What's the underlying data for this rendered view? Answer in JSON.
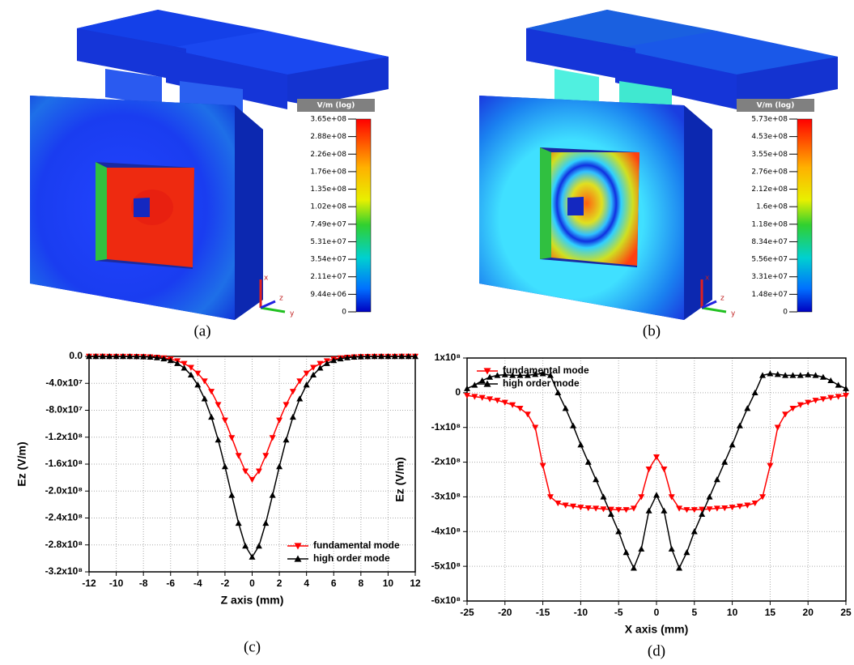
{
  "renders": [
    {
      "caption": "(a)",
      "colorbar_title": "V/m (log)",
      "axes_labels": [
        "x",
        "z",
        "y"
      ],
      "colorbar_labels": [
        "3.65e+08",
        "2.88e+08",
        "2.26e+08",
        "1.76e+08",
        "1.35e+08",
        "1.02e+08",
        "7.49e+07",
        "5.31e+07",
        "3.54e+07",
        "2.11e+07",
        "9.44e+06",
        "0"
      ]
    },
    {
      "caption": "(b)",
      "colorbar_title": "V/m (log)",
      "axes_labels": [
        "x",
        "z",
        "y"
      ],
      "colorbar_labels": [
        "5.73e+08",
        "4.53e+08",
        "3.55e+08",
        "2.76e+08",
        "2.12e+08",
        "1.6e+08",
        "1.18e+08",
        "8.34e+07",
        "5.56e+07",
        "3.31e+07",
        "1.48e+07",
        "0"
      ]
    }
  ],
  "chart_data": [
    {
      "type": "line",
      "caption": "(c)",
      "x_label": "Z axis (mm)",
      "y_label": "Ez (V/m)",
      "grid": true,
      "legend": "lower right",
      "xlim": [
        -12,
        12
      ],
      "xticks": [
        -12,
        -10,
        -8,
        -6,
        -4,
        -2,
        0,
        2,
        4,
        6,
        8,
        10,
        12
      ],
      "ylim": [
        -320000000.0,
        0
      ],
      "yticks": [
        {
          "value": 0,
          "label": "0.0"
        },
        {
          "value": -40000000.0,
          "label": "-4.0x10⁷"
        },
        {
          "value": -80000000.0,
          "label": "-8.0x10⁷"
        },
        {
          "value": -120000000.0,
          "label": "-1.2x10⁸"
        },
        {
          "value": -160000000.0,
          "label": "-1.6x10⁸"
        },
        {
          "value": -200000000.0,
          "label": "-2.0x10⁸"
        },
        {
          "value": -240000000.0,
          "label": "-2.4x10⁸"
        },
        {
          "value": -280000000.0,
          "label": "-2.8x10⁸"
        },
        {
          "value": -320000000.0,
          "label": "-3.2x10⁸"
        }
      ],
      "x": [
        -12,
        -11.5,
        -11,
        -10.5,
        -10,
        -9.5,
        -9,
        -8.5,
        -8,
        -7.5,
        -7,
        -6.5,
        -6,
        -5.5,
        -5,
        -4.5,
        -4,
        -3.5,
        -3,
        -2.5,
        -2,
        -1.5,
        -1,
        -0.5,
        0,
        0.5,
        1,
        1.5,
        2,
        2.5,
        3,
        3.5,
        4,
        4.5,
        5,
        5.5,
        6,
        6.5,
        7,
        7.5,
        8,
        8.5,
        9,
        9.5,
        10,
        10.5,
        11,
        11.5,
        12
      ],
      "series": [
        {
          "name": "fundamental mode",
          "color": "#ff0000",
          "marker": "triangle-down",
          "values": [
            -2000.0,
            -4000.0,
            -9000.0,
            -18000.0,
            -36000.0,
            -70000.0,
            -130000.0,
            -240000.0,
            -440000.0,
            -780000.0,
            -1390000.0,
            -2400000.0,
            -4000000.0,
            -6660000.0,
            -10600000.0,
            -16500000.0,
            -25100000.0,
            -36600000.0,
            -52100000.0,
            -71600000.0,
            -94800000.0,
            -120800000.0,
            -147300000.0,
            -170400000.0,
            -183000000.0,
            -170400000.0,
            -147300000.0,
            -120800000.0,
            -94800000.0,
            -71600000.0,
            -52100000.0,
            -36600000.0,
            -25100000.0,
            -16500000.0,
            -10600000.0,
            -6660000.0,
            -4000000.0,
            -2400000.0,
            -1390000.0,
            -780000.0,
            -440000.0,
            -240000.0,
            -130000.0,
            -70000.0,
            -36000.0,
            -18000.0,
            -9000.0,
            -4000.0,
            -2000.0
          ]
        },
        {
          "name": "high order mode",
          "color": "#000000",
          "marker": "triangle-up",
          "values": [
            -1000.0,
            -3000.0,
            -6000.0,
            -14000.0,
            -30000.0,
            -60000.0,
            -130000.0,
            -260000.0,
            -520000.0,
            -1000000.0,
            -1900000.0,
            -3500000.0,
            -6100000.0,
            -10400000.0,
            -17200000.0,
            -27500000.0,
            -42300000.0,
            -62900000.0,
            -90100000.0,
            -124000000.0,
            -163600000.0,
            -206200000.0,
            -247700000.0,
            -281500000.0,
            -298000000.0,
            -281500000.0,
            -247700000.0,
            -206200000.0,
            -163600000.0,
            -124000000.0,
            -90100000.0,
            -62900000.0,
            -42300000.0,
            -27500000.0,
            -17200000.0,
            -10400000.0,
            -6100000.0,
            -3500000.0,
            -1900000.0,
            -1000000.0,
            -520000.0,
            -260000.0,
            -130000.0,
            -60000.0,
            -30000.0,
            -14000.0,
            -6000.0,
            -3000.0,
            -1000.0
          ]
        }
      ]
    },
    {
      "type": "line",
      "caption": "(d)",
      "x_label": "X axis (mm)",
      "y_label": "Ez (V/m)",
      "grid": true,
      "legend": "upper left",
      "xlim": [
        -25,
        25
      ],
      "xticks": [
        -25,
        -20,
        -15,
        -10,
        -5,
        0,
        5,
        10,
        15,
        20,
        25
      ],
      "ylim": [
        -600000000.0,
        100000000.0
      ],
      "yticks": [
        {
          "value": 100000000.0,
          "label": "1x10⁸"
        },
        0,
        {
          "value": -100000000.0,
          "label": "-1x10⁸"
        },
        {
          "value": -200000000.0,
          "label": "-2x10⁸"
        },
        {
          "value": -300000000.0,
          "label": "-3x10⁸"
        },
        {
          "value": -400000000.0,
          "label": "-4x10⁸"
        },
        {
          "value": -500000000.0,
          "label": "-5x10⁸"
        },
        {
          "value": -600000000.0,
          "label": "-6x10⁸"
        }
      ],
      "x": [
        -25,
        -24,
        -23,
        -22,
        -21,
        -20,
        -19,
        -18,
        -17,
        -16,
        -15,
        -14,
        -13,
        -12,
        -11,
        -10,
        -9,
        -8,
        -7,
        -6,
        -5,
        -4,
        -3,
        -2,
        -1,
        0,
        1,
        2,
        3,
        4,
        5,
        6,
        7,
        8,
        9,
        10,
        11,
        12,
        13,
        14,
        15,
        16,
        17,
        18,
        19,
        20,
        21,
        22,
        23,
        24,
        25
      ],
      "series": [
        {
          "name": "fundamental mode",
          "color": "#ff0000",
          "marker": "triangle-down",
          "values": [
            -8000000.0,
            -11000000.0,
            -14000000.0,
            -18000000.0,
            -22000000.0,
            -28000000.0,
            -35000000.0,
            -45000000.0,
            -62000000.0,
            -100000000.0,
            -210000000.0,
            -300000000.0,
            -318000000.0,
            -324000000.0,
            -327000000.0,
            -330000000.0,
            -332000000.0,
            -333000000.0,
            -335000000.0,
            -336000000.0,
            -337000000.0,
            -337000000.0,
            -333000000.0,
            -300000000.0,
            -220000000.0,
            -185000000.0,
            -220000000.0,
            -300000000.0,
            -333000000.0,
            -337000000.0,
            -337000000.0,
            -336000000.0,
            -335000000.0,
            -333000000.0,
            -332000000.0,
            -330000000.0,
            -327000000.0,
            -324000000.0,
            -318000000.0,
            -300000000.0,
            -210000000.0,
            -100000000.0,
            -62000000.0,
            -45000000.0,
            -35000000.0,
            -28000000.0,
            -22000000.0,
            -18000000.0,
            -14000000.0,
            -11000000.0,
            -8000000.0
          ]
        },
        {
          "name": "high order mode",
          "color": "#000000",
          "marker": "triangle-up",
          "values": [
            12000000.0,
            22000000.0,
            35000000.0,
            45000000.0,
            50000000.0,
            52000000.0,
            50000000.0,
            50000000.0,
            50000000.0,
            53000000.0,
            55000000.0,
            50000000.0,
            0,
            -45000000.0,
            -95000000.0,
            -150000000.0,
            -200000000.0,
            -250000000.0,
            -300000000.0,
            -350000000.0,
            -400000000.0,
            -460000000.0,
            -505000000.0,
            -450000000.0,
            -340000000.0,
            -295000000.0,
            -340000000.0,
            -450000000.0,
            -505000000.0,
            -460000000.0,
            -400000000.0,
            -350000000.0,
            -300000000.0,
            -250000000.0,
            -200000000.0,
            -150000000.0,
            -95000000.0,
            -45000000.0,
            0,
            50000000.0,
            55000000.0,
            53000000.0,
            50000000.0,
            50000000.0,
            50000000.0,
            52000000.0,
            50000000.0,
            45000000.0,
            35000000.0,
            22000000.0,
            12000000.0
          ]
        }
      ]
    }
  ]
}
